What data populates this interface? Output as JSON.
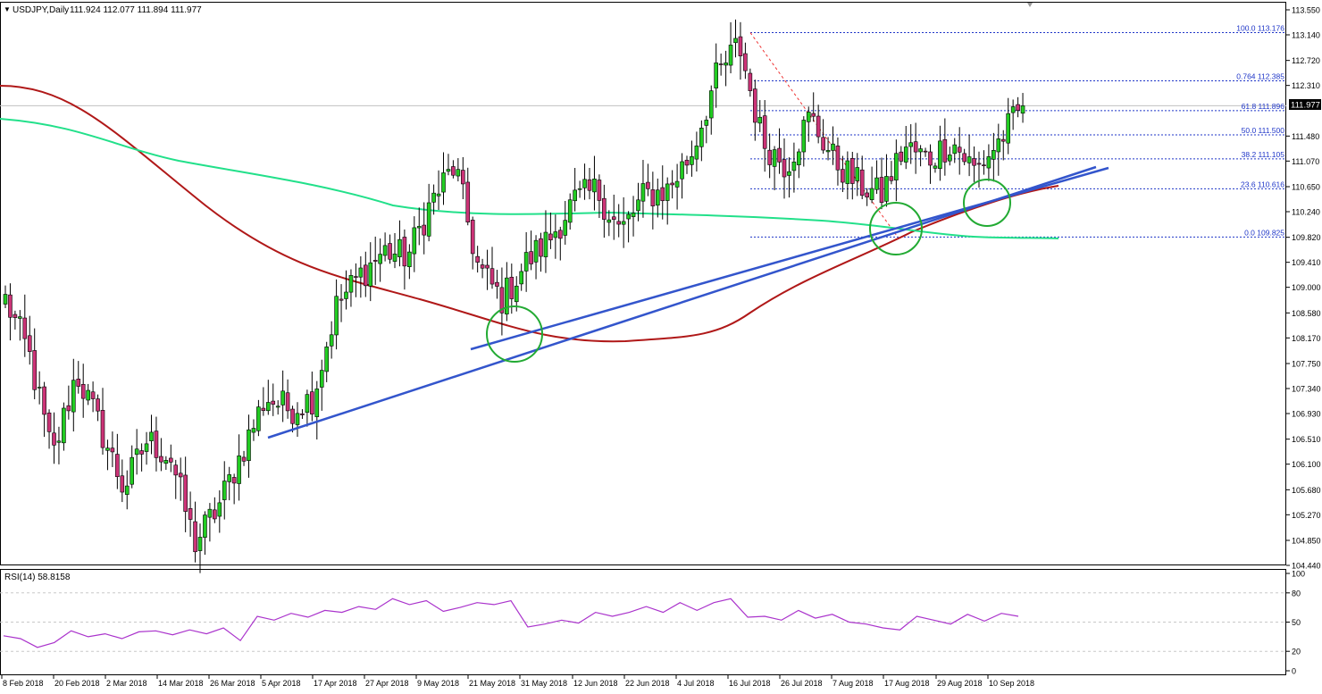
{
  "header": {
    "symbol": "USDJPY,Daily",
    "ohlc": "111.924 112.077 111.894 111.977"
  },
  "price_badge": "111.977",
  "rsi_label": "RSI(14) 58.8158",
  "colors": {
    "bull": "#22cc22",
    "bear": "#cc3377",
    "ma_red": "#b01818",
    "ma_green": "#22e08a",
    "trend": "#3355cc",
    "circle": "#22aa33",
    "fib": "#1f36c8",
    "rsi": "#aa33cc"
  },
  "chart_data": [
    {
      "type": "candlestick",
      "title": "USDJPY,Daily",
      "ylim": [
        104.44,
        113.55
      ],
      "y_ticks": [
        "113.550",
        "113.140",
        "112.720",
        "112.310",
        "111.480",
        "111.070",
        "110.650",
        "110.240",
        "109.820",
        "109.410",
        "109.000",
        "108.580",
        "108.170",
        "107.750",
        "107.340",
        "106.930",
        "106.510",
        "106.100",
        "105.680",
        "105.270",
        "104.850",
        "104.440"
      ],
      "x_ticks": [
        "8 Feb 2018",
        "20 Feb 2018",
        "2 Mar 2018",
        "14 Mar 2018",
        "26 Mar 2018",
        "5 Apr 2018",
        "17 Apr 2018",
        "27 Apr 2018",
        "9 May 2018",
        "21 May 2018",
        "31 May 2018",
        "12 Jun 2018",
        "22 Jun 2018",
        "4 Jul 2018",
        "16 Jul 2018",
        "26 Jul 2018",
        "7 Aug 2018",
        "17 Aug 2018",
        "29 Aug 2018",
        "10 Sep 2018"
      ],
      "close_anchors": [
        {
          "date": "8 Feb 2018",
          "close": 108.8
        },
        {
          "date": "12 Feb 2018",
          "close": 107.9
        },
        {
          "date": "16 Feb 2018",
          "close": 106.2
        },
        {
          "date": "20 Feb 2018",
          "close": 107.6
        },
        {
          "date": "26 Feb 2018",
          "close": 106.7
        },
        {
          "date": "2 Mar 2018",
          "close": 105.7
        },
        {
          "date": "8 Mar 2018",
          "close": 106.5
        },
        {
          "date": "14 Mar 2018",
          "close": 106.2
        },
        {
          "date": "23 Mar 2018",
          "close": 104.8
        },
        {
          "date": "26 Mar 2018",
          "close": 105.4
        },
        {
          "date": "30 Mar 2018",
          "close": 106.3
        },
        {
          "date": "5 Apr 2018",
          "close": 107.2
        },
        {
          "date": "11 Apr 2018",
          "close": 107.0
        },
        {
          "date": "17 Apr 2018",
          "close": 107.2
        },
        {
          "date": "23 Apr 2018",
          "close": 108.7
        },
        {
          "date": "27 Apr 2018",
          "close": 109.2
        },
        {
          "date": "3 May 2018",
          "close": 109.6
        },
        {
          "date": "9 May 2018",
          "close": 109.5
        },
        {
          "date": "15 May 2018",
          "close": 110.4
        },
        {
          "date": "21 May 2018",
          "close": 111.0
        },
        {
          "date": "25 May 2018",
          "close": 109.3
        },
        {
          "date": "29 May 2018",
          "close": 108.8
        },
        {
          "date": "31 May 2018",
          "close": 109.4
        },
        {
          "date": "6 Jun 2018",
          "close": 109.8
        },
        {
          "date": "12 Jun 2018",
          "close": 110.4
        },
        {
          "date": "18 Jun 2018",
          "close": 110.6
        },
        {
          "date": "22 Jun 2018",
          "close": 109.9
        },
        {
          "date": "28 Jun 2018",
          "close": 110.5
        },
        {
          "date": "4 Jul 2018",
          "close": 110.6
        },
        {
          "date": "10 Jul 2018",
          "close": 111.2
        },
        {
          "date": "16 Jul 2018",
          "close": 112.4
        },
        {
          "date": "19 Jul 2018",
          "close": 113.0
        },
        {
          "date": "20 Jul 2018",
          "close": 111.4
        },
        {
          "date": "26 Jul 2018",
          "close": 111.0
        },
        {
          "date": "31 Jul 2018",
          "close": 111.8
        },
        {
          "date": "7 Aug 2018",
          "close": 111.1
        },
        {
          "date": "13 Aug 2018",
          "close": 110.7
        },
        {
          "date": "17 Aug 2018",
          "close": 110.5
        },
        {
          "date": "23 Aug 2018",
          "close": 111.3
        },
        {
          "date": "29 Aug 2018",
          "close": 111.1
        },
        {
          "date": "4 Sep 2018",
          "close": 111.4
        },
        {
          "date": "7 Sep 2018",
          "close": 110.9
        },
        {
          "date": "10 Sep 2018",
          "close": 111.4
        },
        {
          "date": "13 Sep 2018",
          "close": 111.95
        }
      ],
      "fibonacci": [
        {
          "label": "100.0 113.176",
          "price": 113.176
        },
        {
          "label": "0.764 112.385",
          "price": 112.385
        },
        {
          "label": "61.8 111.896",
          "price": 111.896
        },
        {
          "label": "50.0 111.500",
          "price": 111.5
        },
        {
          "label": "38.2 111.105",
          "price": 111.105
        },
        {
          "label": "23.6 110.616",
          "price": 110.616
        },
        {
          "label": "0.0 109.825",
          "price": 109.825
        }
      ],
      "last_price": 111.977
    },
    {
      "type": "line",
      "title": "RSI(14) 58.8158",
      "ylim": [
        0,
        100
      ],
      "y_ticks": [
        "100",
        "80",
        "50",
        "20",
        "0"
      ],
      "series": [
        {
          "name": "RSI(14)",
          "values": [
            36,
            33,
            24,
            29,
            41,
            35,
            38,
            33,
            40,
            41,
            37,
            42,
            38,
            44,
            31,
            56,
            52,
            59,
            55,
            62,
            60,
            66,
            63,
            74,
            68,
            72,
            61,
            65,
            70,
            68,
            72,
            45,
            48,
            52,
            49,
            60,
            56,
            60,
            66,
            60,
            70,
            62,
            70,
            74,
            55,
            56,
            52,
            62,
            54,
            58,
            50,
            48,
            44,
            42,
            56,
            52,
            48,
            58,
            51,
            59,
            56
          ]
        }
      ]
    }
  ]
}
